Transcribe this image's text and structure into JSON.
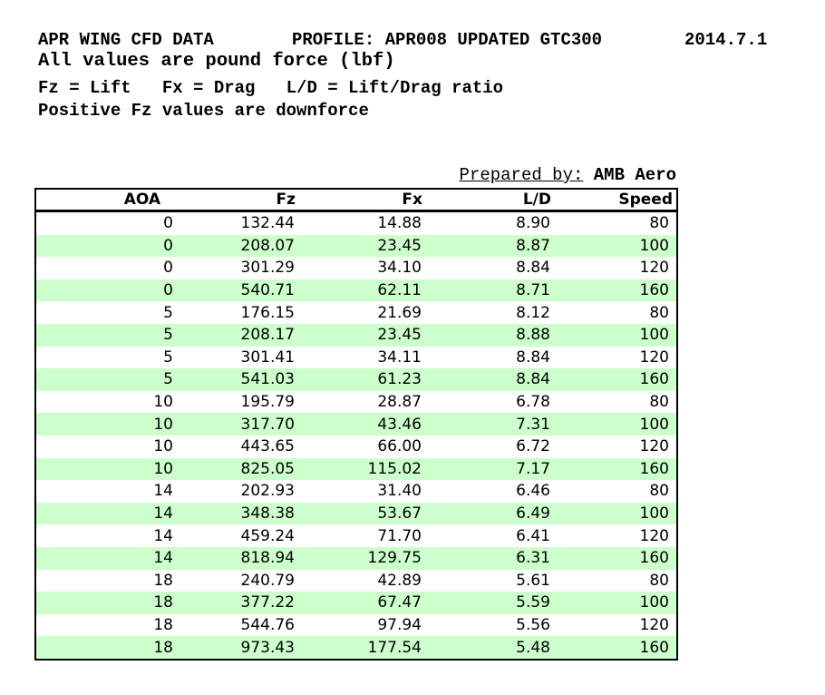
{
  "header": {
    "title": "APR WING CFD DATA",
    "profile": "PROFILE: APR008 UPDATED GTC300",
    "date": "2014.7.1",
    "units_note": "All values are pound force (lbf)",
    "legend": "Fz = Lift   Fx = Drag   L/D = Lift/Drag ratio",
    "downforce_note": "Positive Fz values are downforce"
  },
  "prepared_by": {
    "label": "Prepared by:",
    "value": "AMB Aero"
  },
  "table": {
    "columns": [
      "AOA",
      "Fz",
      "Fx",
      "L/D",
      "Speed"
    ],
    "rows": [
      [
        "0",
        "132.44",
        "14.88",
        "8.90",
        "80"
      ],
      [
        "0",
        "208.07",
        "23.45",
        "8.87",
        "100"
      ],
      [
        "0",
        "301.29",
        "34.10",
        "8.84",
        "120"
      ],
      [
        "0",
        "540.71",
        "62.11",
        "8.71",
        "160"
      ],
      [
        "5",
        "176.15",
        "21.69",
        "8.12",
        "80"
      ],
      [
        "5",
        "208.17",
        "23.45",
        "8.88",
        "100"
      ],
      [
        "5",
        "301.41",
        "34.11",
        "8.84",
        "120"
      ],
      [
        "5",
        "541.03",
        "61.23",
        "8.84",
        "160"
      ],
      [
        "10",
        "195.79",
        "28.87",
        "6.78",
        "80"
      ],
      [
        "10",
        "317.70",
        "43.46",
        "7.31",
        "100"
      ],
      [
        "10",
        "443.65",
        "66.00",
        "6.72",
        "120"
      ],
      [
        "10",
        "825.05",
        "115.02",
        "7.17",
        "160"
      ],
      [
        "14",
        "202.93",
        "31.40",
        "6.46",
        "80"
      ],
      [
        "14",
        "348.38",
        "53.67",
        "6.49",
        "100"
      ],
      [
        "14",
        "459.24",
        "71.70",
        "6.41",
        "120"
      ],
      [
        "14",
        "818.94",
        "129.75",
        "6.31",
        "160"
      ],
      [
        "18",
        "240.79",
        "42.89",
        "5.61",
        "80"
      ],
      [
        "18",
        "377.22",
        "67.47",
        "5.59",
        "100"
      ],
      [
        "18",
        "544.76",
        "97.94",
        "5.56",
        "120"
      ],
      [
        "18",
        "973.43",
        "177.54",
        "5.48",
        "160"
      ]
    ]
  },
  "colors": {
    "stripe_green": "#ccffcc",
    "border": "#000000",
    "text": "#000000",
    "background": "#ffffff"
  }
}
